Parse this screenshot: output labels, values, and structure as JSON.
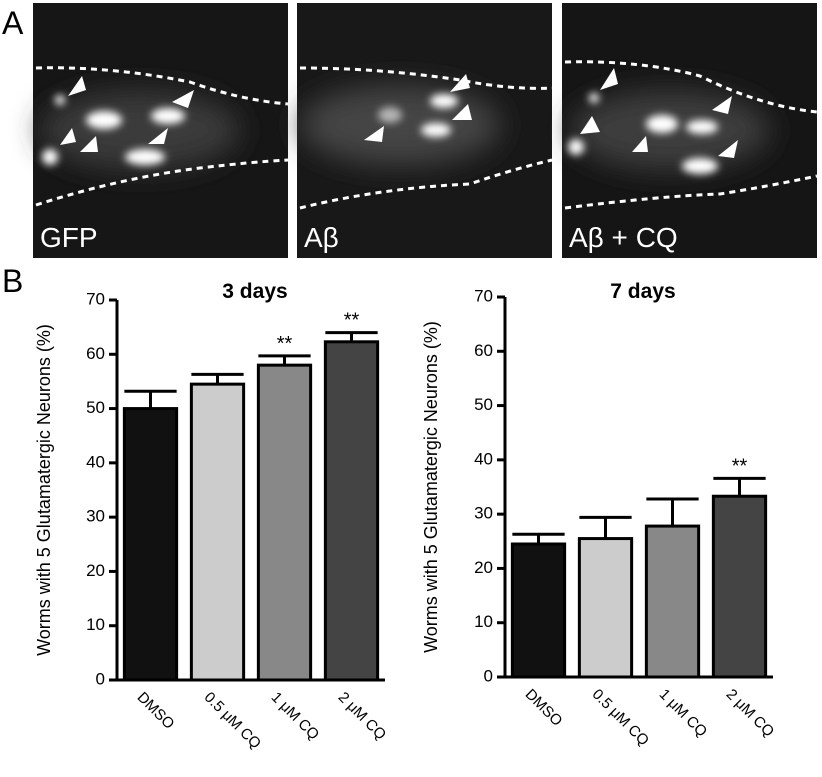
{
  "panel_labels": [
    "A",
    "B"
  ],
  "images": [
    {
      "label": "GFP"
    },
    {
      "label": "Aβ"
    },
    {
      "label": "Aβ + CQ"
    }
  ],
  "chart_data": [
    {
      "type": "bar",
      "title": "3 days",
      "ylabel": "Worms with 5 Glutamatergic Neurons (%)",
      "categories": [
        "DMSO",
        "0.5 μM CQ",
        "1 μM CQ",
        "2 μM CQ"
      ],
      "values": [
        50,
        54.5,
        58,
        62.3
      ],
      "errors": [
        3.2,
        1.8,
        1.7,
        1.7
      ],
      "annotations": [
        null,
        null,
        "**",
        "**"
      ],
      "colors": [
        "#111111",
        "#cccccc",
        "#888888",
        "#444444"
      ],
      "ylim": [
        0,
        70
      ],
      "yticks": [
        0,
        10,
        20,
        30,
        40,
        50,
        60,
        70
      ]
    },
    {
      "type": "bar",
      "title": "7 days",
      "ylabel": "Worms with 5 Glutamatergic Neurons (%)",
      "categories": [
        "DMSO",
        "0.5 μM CQ",
        "1 μM CQ",
        "2 μM CQ"
      ],
      "values": [
        24.5,
        25.5,
        27.8,
        33.3
      ],
      "errors": [
        1.8,
        3.9,
        5,
        3.3
      ],
      "annotations": [
        null,
        null,
        null,
        "**"
      ],
      "colors": [
        "#111111",
        "#cccccc",
        "#888888",
        "#444444"
      ],
      "ylim": [
        0,
        70
      ],
      "yticks": [
        0,
        10,
        20,
        30,
        40,
        50,
        60,
        70
      ]
    }
  ]
}
